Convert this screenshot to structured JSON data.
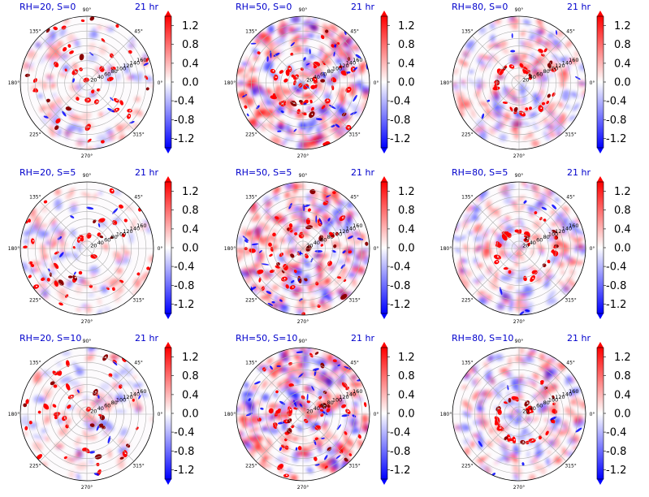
{
  "chart_data": {
    "type": "heatmap",
    "layout": {
      "rows": 3,
      "cols": 3
    },
    "projection": "polar",
    "grid": true,
    "colormap": "bwr",
    "colorbar": {
      "position": "right",
      "ticks": [
        "1.2",
        "0.8",
        "0.4",
        "0.0",
        "-0.4",
        "-0.8",
        "-1.2"
      ],
      "range": [
        -1.4,
        1.4
      ],
      "colors": {
        "neg": "#0000ff",
        "zero": "#ffffff",
        "pos": "#ff0000",
        "extreme_pos": "#8b0000"
      }
    },
    "angular_ticks": [
      "90°",
      "45°",
      "0°",
      "315°",
      "270°",
      "225°",
      "180°",
      "135°"
    ],
    "radial_ticks": [
      "20",
      "40",
      "60",
      "80",
      "100",
      "120",
      "140",
      "160"
    ],
    "radial_range": [
      0,
      180
    ],
    "panels": [
      {
        "title": "RH=20, S=0",
        "time": "21 hr",
        "rh": 20,
        "s": 0
      },
      {
        "title": "RH=50, S=0",
        "time": "21 hr",
        "rh": 50,
        "s": 0
      },
      {
        "title": "RH=80, S=0",
        "time": "21 hr",
        "rh": 80,
        "s": 0
      },
      {
        "title": "RH=20, S=5",
        "time": "21 hr",
        "rh": 20,
        "s": 5
      },
      {
        "title": "RH=50, S=5",
        "time": "21 hr",
        "rh": 50,
        "s": 5
      },
      {
        "title": "RH=80, S=5",
        "time": "21 hr",
        "rh": 80,
        "s": 5
      },
      {
        "title": "RH=20, S=10",
        "time": "21 hr",
        "rh": 20,
        "s": 10
      },
      {
        "title": "RH=50, S=10",
        "time": "21 hr",
        "rh": 50,
        "s": 10
      },
      {
        "title": "RH=80, S=10",
        "time": "21 hr",
        "rh": 80,
        "s": 10
      }
    ]
  }
}
